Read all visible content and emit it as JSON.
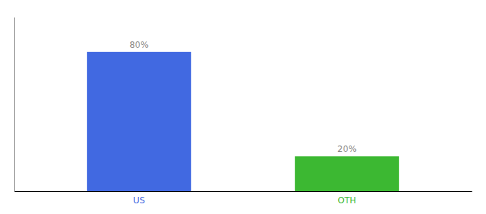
{
  "chart_data": {
    "type": "bar",
    "categories": [
      "US",
      "OTH"
    ],
    "values": [
      80,
      20
    ],
    "value_labels": [
      "80%",
      "20%"
    ],
    "colors": [
      "#4169e1",
      "#3cb832"
    ],
    "ylim": [
      0,
      100
    ],
    "data_labels": true,
    "tick_labels": "x"
  }
}
